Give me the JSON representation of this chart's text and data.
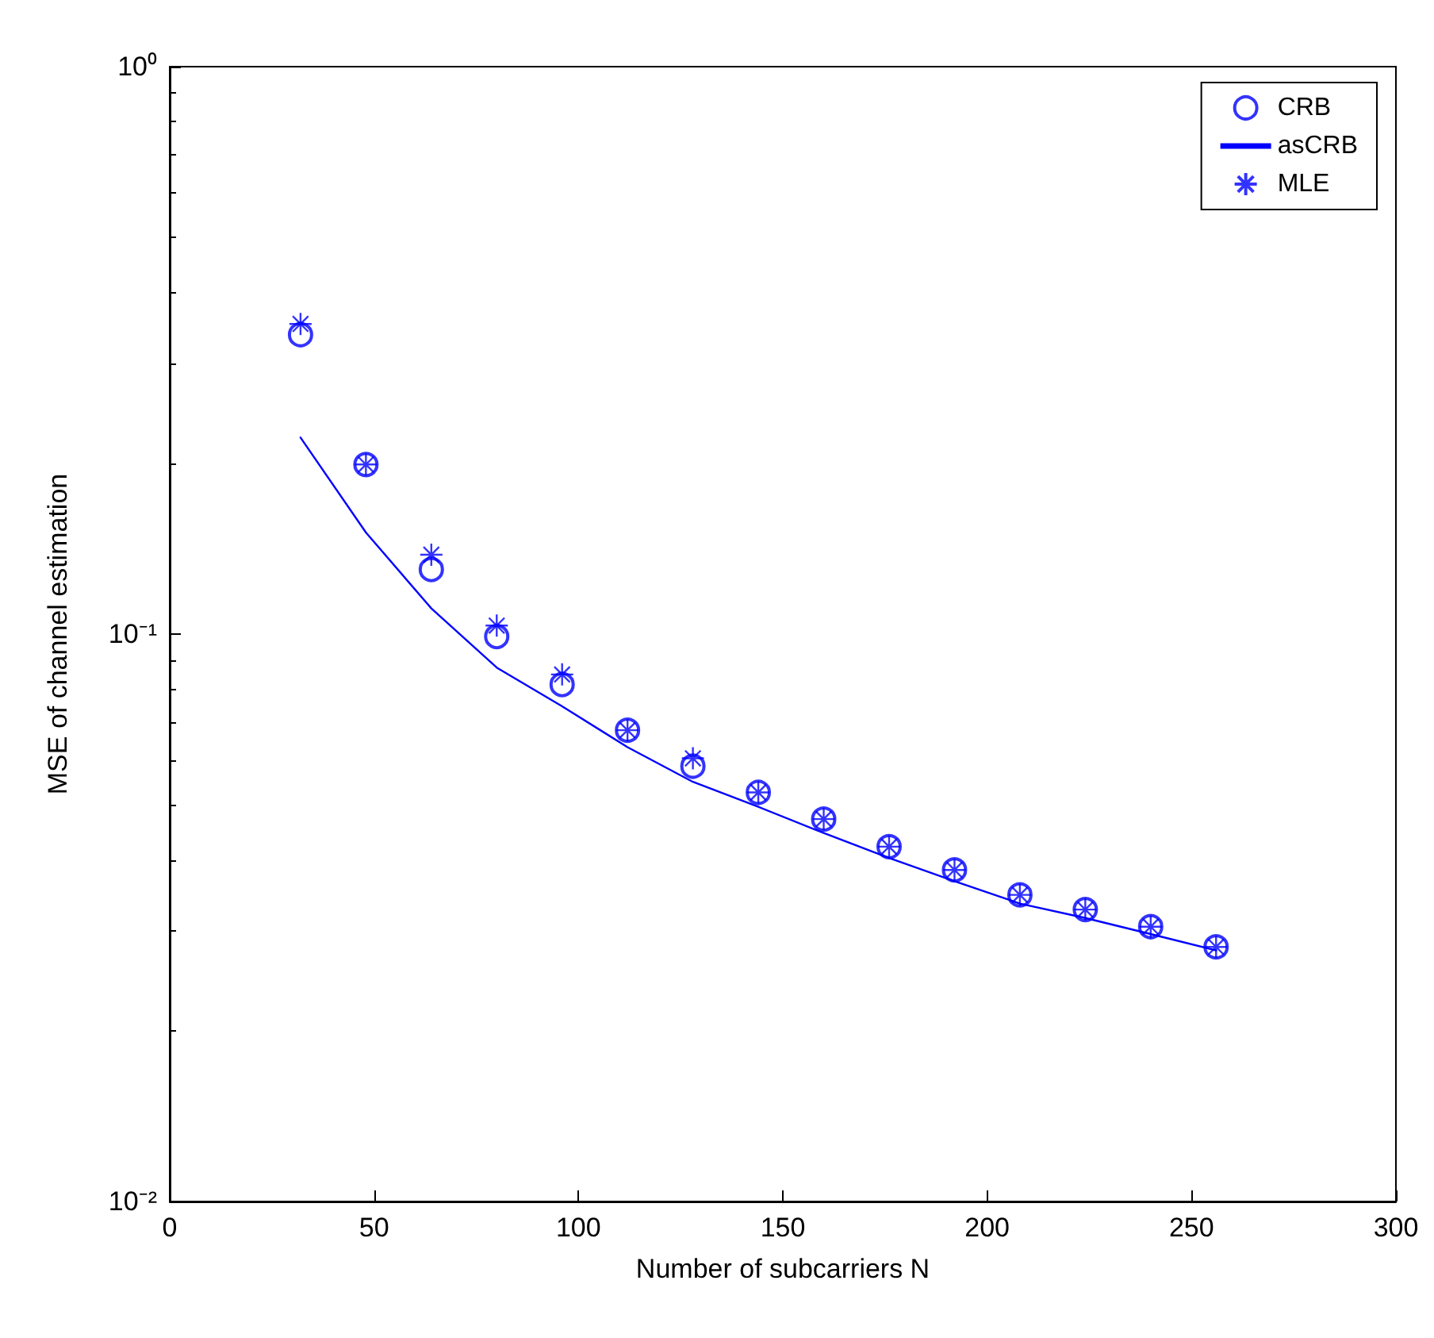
{
  "chart_data": {
    "type": "scatter",
    "xlabel": "Number of subcarriers N",
    "ylabel": "MSE of channel estimation",
    "x": [
      32,
      48,
      64,
      80,
      96,
      112,
      128,
      144,
      160,
      176,
      192,
      208,
      224,
      240,
      256
    ],
    "series": [
      {
        "name": "CRB",
        "marker": "circle",
        "color": "#0000ff",
        "values": [
          0.337,
          0.199,
          0.13,
          0.099,
          0.0815,
          0.0677,
          0.0585,
          0.0526,
          0.0472,
          0.0422,
          0.0384,
          0.0347,
          0.0327,
          0.0305,
          0.0281
        ]
      },
      {
        "name": "asCRB",
        "type": "line",
        "marker": "none",
        "line_style": "solid",
        "color": "#0000ff",
        "values": [
          0.222,
          0.151,
          0.111,
          0.0873,
          0.0746,
          0.0632,
          0.0549,
          0.0496,
          0.0446,
          0.0403,
          0.0367,
          0.0335,
          0.0316,
          0.0296,
          0.0277
        ]
      },
      {
        "name": "MLE",
        "marker": "cross",
        "color": "#0000ff",
        "values": [
          0.352,
          0.199,
          0.138,
          0.1035,
          0.0849,
          0.0677,
          0.0604,
          0.0526,
          0.0472,
          0.0422,
          0.0384,
          0.0347,
          0.0327,
          0.0305,
          0.0281
        ]
      }
    ],
    "xlim": [
      0,
      300
    ],
    "xticks": [
      0,
      50,
      100,
      150,
      200,
      250,
      300
    ],
    "ylim": [
      0.01,
      1
    ],
    "yticks": [
      {
        "value": 0.01,
        "label": "10⁻²"
      },
      {
        "value": 0.1,
        "label": "10⁻¹"
      },
      {
        "value": 1,
        "label": "10⁰"
      }
    ],
    "log": "y",
    "grid": false,
    "legend": "top right"
  }
}
